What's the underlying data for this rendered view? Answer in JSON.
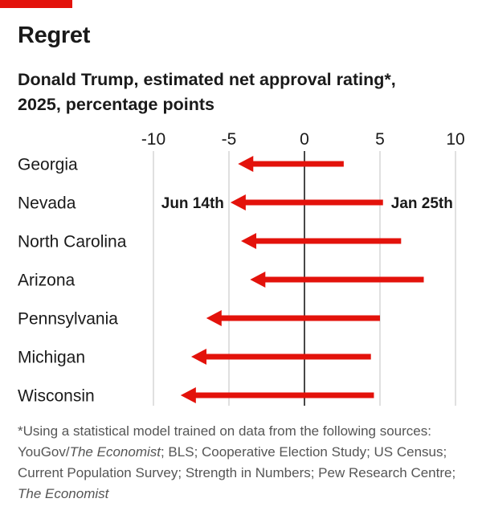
{
  "title": "Regret",
  "subtitle": {
    "line1": "Donald Trump, estimated net approval rating*,",
    "line2": "2025, percentage points"
  },
  "colors": {
    "accent": "#e3120b",
    "arrow": "#e3120b",
    "grid": "#cccccc",
    "zero_line": "#1a1a1a",
    "text": "#1a1a1a",
    "footnote": "#555555"
  },
  "chart_data": {
    "type": "arrow",
    "title": "Regret",
    "subtitle": "Donald Trump, estimated net approval rating*, 2025, percentage points",
    "xlim": [
      -10,
      10
    ],
    "xticks": [
      -10,
      -5,
      0,
      5,
      10
    ],
    "xtick_labels": [
      "-10",
      "-5",
      "0",
      "5",
      "10"
    ],
    "categories": [
      "Georgia",
      "Nevada",
      "North Carolina",
      "Arizona",
      "Pennsylvania",
      "Michigan",
      "Wisconsin"
    ],
    "series": [
      {
        "name": "Jan 25th",
        "values": [
          2.6,
          5.2,
          6.4,
          7.9,
          5.0,
          4.4,
          4.6
        ]
      },
      {
        "name": "Jun 14th",
        "values": [
          -4.4,
          -4.9,
          -4.2,
          -3.6,
          -6.5,
          -7.5,
          -8.2
        ]
      }
    ],
    "annotations": {
      "start": "Jan 25th",
      "end": "Jun 14th",
      "row": "Nevada"
    }
  },
  "footnote": {
    "part1": "*Using a statistical model trained on data from the following sources: YouGov/",
    "italic1": "The Economist",
    "part2": "; BLS; Cooperative Election Study; US Census; Current Population Survey; Strength in Numbers; Pew Research Centre; ",
    "italic2": "The Economist"
  }
}
